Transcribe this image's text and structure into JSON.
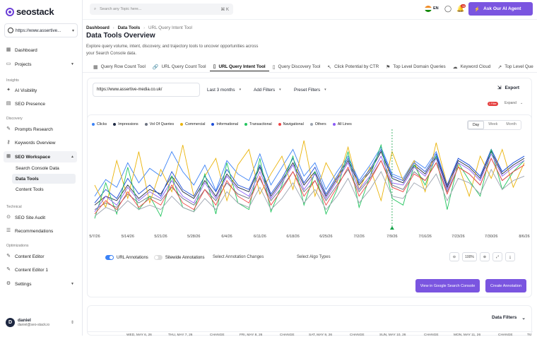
{
  "brand": {
    "name": "seostack"
  },
  "sidebar": {
    "site": "https://www.assertive...",
    "items_top": [
      {
        "label": "Dashboard",
        "icon": "dashboard-icon"
      },
      {
        "label": "Projects",
        "icon": "folder-icon"
      }
    ],
    "insights_header": "Insights",
    "insights": [
      {
        "label": "AI Visibility",
        "icon": "sparkle-icon"
      },
      {
        "label": "SEO Presence",
        "icon": "chart-icon"
      }
    ],
    "discovery_header": "Discovery",
    "discovery": [
      {
        "label": "Prompts Research",
        "icon": "pen-icon"
      },
      {
        "label": "Keywords Overview",
        "icon": "key-icon"
      },
      {
        "label": "SEO Workspace",
        "icon": "workspace-icon"
      }
    ],
    "workspace_sub": [
      "Search Console Data",
      "Data Tools",
      "Content Tools"
    ],
    "technical_header": "Technical",
    "technical": [
      {
        "label": "SEO Site Audit",
        "icon": "audit-icon"
      },
      {
        "label": "Recommendations",
        "icon": "list-icon"
      }
    ],
    "optimizations_header": "Optimizations",
    "optimizations": [
      {
        "label": "Content Editor",
        "icon": "edit-icon"
      },
      {
        "label": "Content Editor 1",
        "icon": "edit-icon"
      },
      {
        "label": "Settings",
        "icon": "gear-icon"
      }
    ],
    "user": {
      "initial": "D",
      "name": "daniel",
      "email": "daniel@seo-stack.io"
    }
  },
  "topbar": {
    "search_placeholder": "Search any Topic here...",
    "shortcut": "⌘ K",
    "lang": "EN",
    "notif_count": "38",
    "ai_button": "Ask Our AI Agent"
  },
  "main": {
    "breadcrumb": [
      "Dashboard",
      "Data Tools",
      "URL Query Intent Tool"
    ],
    "title": "Data Tools Overview",
    "description": "Explore query volume, intent, discovery, and trajectory tools to uncover opportunities across your Search Console data.",
    "tabs": [
      {
        "label": "Query Row Count Tool",
        "icon": "table-icon"
      },
      {
        "label": "URL Query Count Tool",
        "icon": "link-icon"
      },
      {
        "label": "URL Query Intent Tool",
        "icon": "doc-icon"
      },
      {
        "label": "Query Discovery Tool",
        "icon": "doc-icon"
      },
      {
        "label": "Click Potential by CTR",
        "icon": "cursor-icon"
      },
      {
        "label": "Top Level Domain Queries",
        "icon": "flag-icon"
      },
      {
        "label": "Keyword Cloud",
        "icon": "cloud-icon"
      },
      {
        "label": "Top Level Que",
        "icon": "trend-icon"
      }
    ],
    "filters": {
      "url": "https://www.assertive-media.co.uk/",
      "range": "Last 3 months",
      "add_filters": "Add Filters",
      "preset_filters": "Preset Filters",
      "export": "Export",
      "filter_pill": "1 Filter",
      "expand": "Expand"
    },
    "chart_controls": {
      "ranges": [
        "Day",
        "Week",
        "Month"
      ],
      "active": "Day"
    },
    "toggles": {
      "url_annotations": "URL Annotations",
      "sitewide_annotations": "Sitewide Annotations"
    },
    "selects": {
      "annotation_changes": "Select Annotation Changes",
      "algo_types": "Select Algo Types"
    },
    "zoom": {
      "percent": "100%"
    },
    "buttons": {
      "view_gsc": "View in Google Search Console",
      "create_annotation": "Create Annotation"
    },
    "data_filters": "Data Filters",
    "table_headers": [
      "WED, MAY 6, 26",
      "THU, MAY 7, 26",
      "CHANGE",
      "FRI, MAY 8, 26",
      "CHANGE",
      "SAT, MAY 9, 26",
      "CHANGE",
      "SUN, MAY 10, 26",
      "CHANGE",
      "MON, MAY 11, 26",
      "CHANGE",
      "TU"
    ]
  },
  "chart_data": {
    "type": "line",
    "x_ticks": [
      "5/7/26",
      "5/14/26",
      "5/21/26",
      "5/28/26",
      "6/4/26",
      "6/11/26",
      "6/18/26",
      "6/25/26",
      "7/2/26",
      "7/9/26",
      "7/16/26",
      "7/23/26",
      "7/30/26",
      "8/6/26"
    ],
    "grid": false,
    "legend_position": "top-left",
    "series": [
      {
        "name": "Clicks",
        "color": "#3b82f6",
        "values": [
          30,
          45,
          38,
          60,
          42,
          55,
          48,
          70,
          52,
          40,
          58,
          35,
          62,
          50,
          44,
          68,
          40,
          56,
          72,
          48,
          60,
          36,
          52,
          66,
          44,
          58,
          74,
          50,
          46,
          62,
          55,
          70,
          40,
          64,
          58,
          48,
          72,
          52,
          60,
          66
        ]
      },
      {
        "name": "Impressions",
        "color": "#1f2a44",
        "values": [
          22,
          30,
          26,
          40,
          28,
          36,
          32,
          48,
          34,
          28,
          44,
          30,
          50,
          38,
          34,
          56,
          30,
          44,
          60,
          40,
          52,
          30,
          46,
          62,
          40,
          52,
          70,
          46,
          42,
          58,
          50,
          66,
          38,
          62,
          56,
          46,
          70,
          50,
          58,
          64
        ]
      },
      {
        "name": "Vol Of Queries",
        "color": "#6b7280",
        "values": [
          18,
          24,
          20,
          32,
          24,
          30,
          26,
          38,
          28,
          22,
          36,
          26,
          42,
          32,
          28,
          46,
          26,
          38,
          52,
          34,
          44,
          26,
          40,
          54,
          34,
          46,
          62,
          40,
          36,
          52,
          44,
          60,
          34,
          56,
          50,
          40,
          64,
          44,
          52,
          58
        ]
      },
      {
        "name": "Commercial",
        "color": "#eab308",
        "values": [
          40,
          20,
          62,
          28,
          70,
          24,
          54,
          34,
          76,
          30,
          48,
          64,
          26,
          58,
          72,
          32,
          50,
          66,
          36,
          80,
          30,
          60,
          42,
          74,
          36,
          56,
          26,
          70,
          44,
          62,
          34,
          78,
          40,
          58,
          30,
          66,
          46,
          72,
          38,
          60
        ]
      },
      {
        "name": "Informational",
        "color": "#1d4ed8",
        "values": [
          24,
          36,
          28,
          46,
          32,
          40,
          30,
          52,
          36,
          30,
          48,
          34,
          54,
          40,
          36,
          58,
          32,
          46,
          64,
          42,
          56,
          32,
          48,
          64,
          42,
          54,
          72,
          48,
          44,
          60,
          52,
          68,
          40,
          64,
          58,
          48,
          72,
          52,
          60,
          66
        ]
      },
      {
        "name": "Transactional",
        "color": "#22c55e",
        "values": [
          10,
          42,
          14,
          56,
          18,
          30,
          12,
          48,
          20,
          16,
          50,
          14,
          60,
          24,
          18,
          64,
          16,
          40,
          66,
          22,
          52,
          14,
          36,
          70,
          20,
          48,
          76,
          28,
          22,
          58,
          40,
          66,
          18,
          60,
          44,
          30,
          72,
          36,
          52,
          62
        ]
      },
      {
        "name": "Navigational",
        "color": "#ef4444",
        "values": [
          14,
          26,
          18,
          34,
          20,
          28,
          22,
          40,
          24,
          18,
          36,
          22,
          44,
          30,
          24,
          48,
          22,
          36,
          52,
          30,
          44,
          22,
          38,
          56,
          30,
          44,
          62,
          38,
          34,
          50,
          44,
          60,
          32,
          56,
          50,
          40,
          64,
          44,
          52,
          58
        ]
      },
      {
        "name": "Others",
        "color": "#9ca3af",
        "values": [
          12,
          20,
          16,
          26,
          18,
          22,
          18,
          30,
          20,
          16,
          28,
          18,
          34,
          24,
          20,
          38,
          18,
          28,
          42,
          24,
          36,
          18,
          30,
          46,
          24,
          36,
          52,
          30,
          28,
          42,
          36,
          50,
          26,
          46,
          42,
          32,
          54,
          36,
          44,
          48
        ]
      },
      {
        "name": "All Lines",
        "color": "#8b5cf6",
        "values": [
          16,
          30,
          22,
          38,
          26,
          34,
          28,
          44,
          30,
          24,
          42,
          28,
          48,
          36,
          30,
          52,
          28,
          42,
          58,
          36,
          50,
          28,
          44,
          60,
          36,
          48,
          66,
          42,
          40,
          56,
          48,
          64,
          36,
          60,
          54,
          44,
          68,
          48,
          56,
          62
        ]
      }
    ],
    "annotation_marker_x": "7/9/26"
  }
}
